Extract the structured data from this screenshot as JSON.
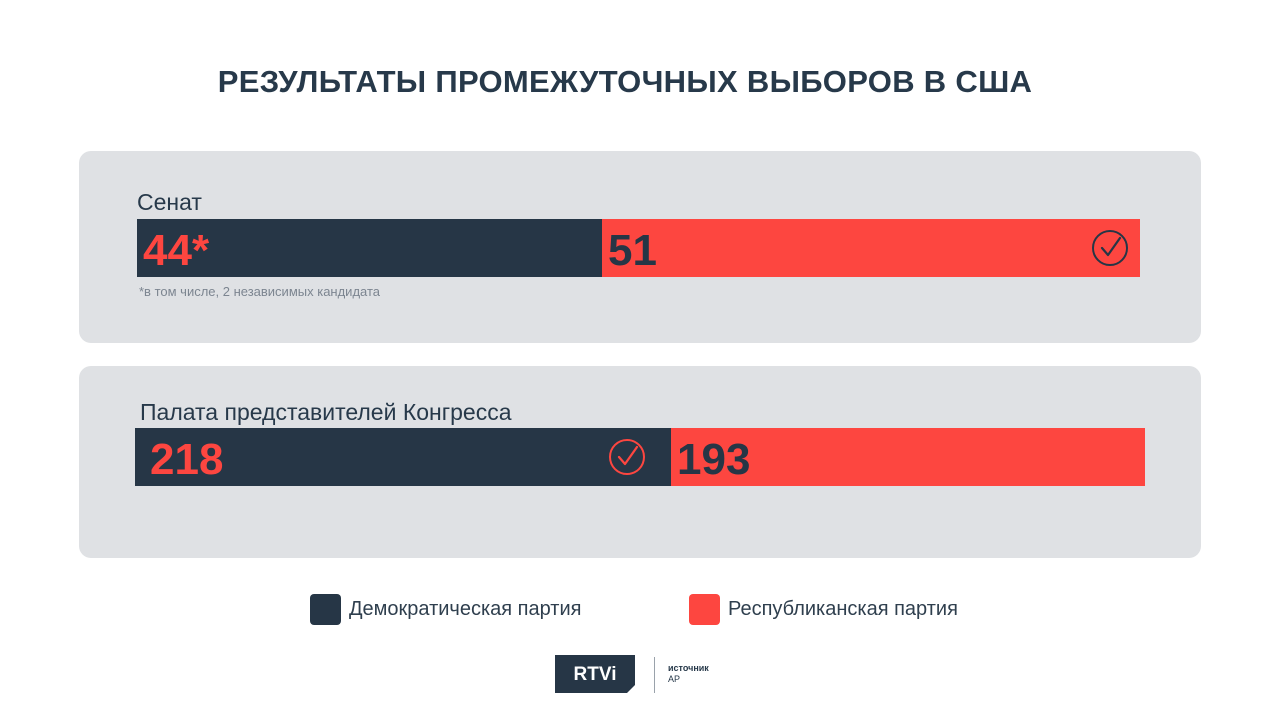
{
  "title": "РЕЗУЛЬТАТЫ ПРОМЕЖУТОЧНЫХ ВЫБОРОВ В США",
  "colors": {
    "democrat": "#263646",
    "republican": "#fd4640",
    "panel": "#dfe1e4",
    "text": "#27394a",
    "check_on_red": "#263646",
    "check_on_dark": "#fd4640"
  },
  "chart_data": [
    {
      "type": "bar",
      "title": "Сенат",
      "stacked": true,
      "series": [
        {
          "name": "Демократическая партия",
          "value": 44,
          "label": "44*"
        },
        {
          "name": "Республиканская партия",
          "value": 51,
          "label": "51"
        }
      ],
      "winner": "Республиканская партия",
      "footnote": "*в том числе, 2 независимых кандидата"
    },
    {
      "type": "bar",
      "title": "Палата представителей Конгресса",
      "stacked": true,
      "series": [
        {
          "name": "Демократическая партия",
          "value": 218,
          "label": "218"
        },
        {
          "name": "Республиканская партия",
          "value": 193,
          "label": "193"
        }
      ],
      "winner": "Демократическая партия"
    }
  ],
  "legend": {
    "democrat_label": "Демократическая партия",
    "republican_label": "Республиканская партия",
    "position": "bottom-center"
  },
  "brand": {
    "logo_text": "RTVi",
    "source_label": "источник",
    "source_value": "AP"
  }
}
